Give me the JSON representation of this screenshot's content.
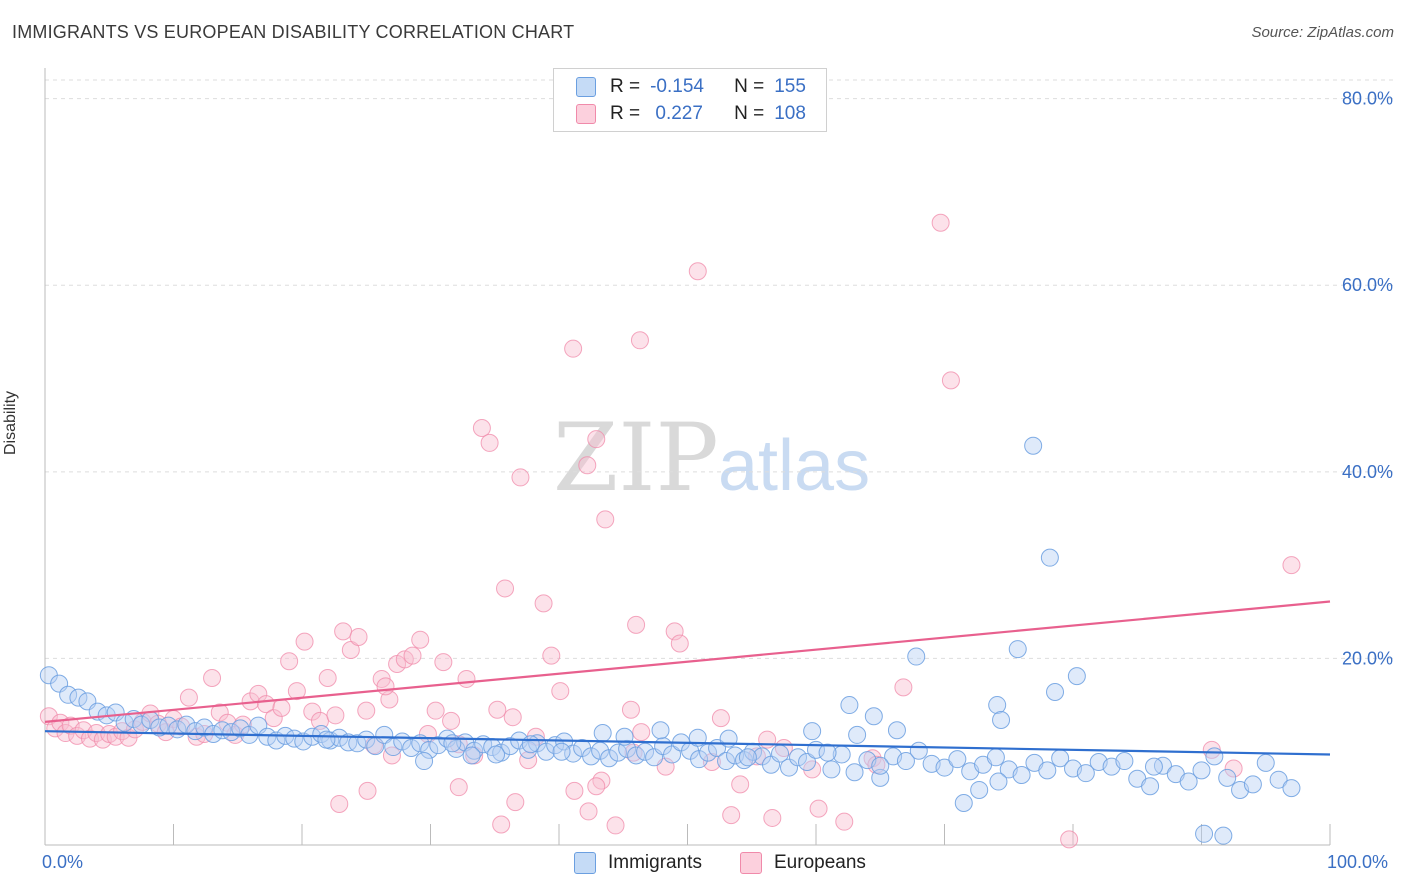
{
  "title": "IMMIGRANTS VS EUROPEAN DISABILITY CORRELATION CHART",
  "source": "Source: ZipAtlas.com",
  "watermark": {
    "zip": "ZIP",
    "atlas": "atlas"
  },
  "legend": {
    "r_label": "R =",
    "n_label": "N =",
    "rows": [
      {
        "r": "-0.154",
        "n": "155",
        "color": "#6b9fe0"
      },
      {
        "r": " 0.227",
        "n": "108",
        "color": "#f08aaa"
      }
    ]
  },
  "bottom_legend": [
    "Immigrants",
    "Europeans"
  ],
  "x_tick_labels": {
    "left": "0.0%",
    "right": "100.0%"
  },
  "chart_data": {
    "type": "scatter",
    "title": "IMMIGRANTS VS EUROPEAN DISABILITY CORRELATION CHART",
    "xlabel": "",
    "ylabel": "Disability",
    "xlim": [
      0,
      100
    ],
    "ylim": [
      0,
      82
    ],
    "y_ticks": [
      {
        "value": 20,
        "label": "20.0%"
      },
      {
        "value": 40,
        "label": "40.0%"
      },
      {
        "value": 60,
        "label": "60.0%"
      },
      {
        "value": 80,
        "label": "80.0%"
      }
    ],
    "grid": "horizontal dashed",
    "legend_placement": "bottom-center",
    "colors": {
      "immigrants": "#6b9fe0",
      "europeans": "#f08aaa",
      "immigrants_line": "#2f6fcf",
      "europeans_line": "#e8608e",
      "tick_label": "#3a6fc4"
    },
    "series": [
      {
        "name": "Immigrants",
        "trend": {
          "x": [
            0,
            100
          ],
          "y": [
            12.2,
            9.7
          ]
        },
        "points": [
          [
            0.3,
            18.2
          ],
          [
            1.1,
            17.3
          ],
          [
            1.8,
            16.1
          ],
          [
            2.6,
            15.8
          ],
          [
            3.3,
            15.4
          ],
          [
            4.1,
            14.3
          ],
          [
            4.8,
            13.9
          ],
          [
            5.5,
            14.2
          ],
          [
            6.2,
            13.1
          ],
          [
            6.9,
            13.5
          ],
          [
            7.5,
            12.9
          ],
          [
            8.2,
            13.4
          ],
          [
            8.9,
            12.6
          ],
          [
            9.6,
            12.8
          ],
          [
            10.3,
            12.4
          ],
          [
            11.0,
            12.9
          ],
          [
            11.7,
            12.2
          ],
          [
            12.4,
            12.6
          ],
          [
            13.1,
            11.9
          ],
          [
            13.8,
            12.3
          ],
          [
            14.5,
            12.1
          ],
          [
            15.2,
            12.5
          ],
          [
            15.9,
            11.8
          ],
          [
            16.6,
            12.8
          ],
          [
            17.3,
            11.6
          ],
          [
            18.0,
            11.2
          ],
          [
            18.7,
            11.7
          ],
          [
            19.4,
            11.4
          ],
          [
            20.1,
            11.1
          ],
          [
            20.8,
            11.6
          ],
          [
            21.5,
            11.9
          ],
          [
            22.2,
            11.2
          ],
          [
            22.9,
            11.5
          ],
          [
            23.6,
            11.0
          ],
          [
            24.3,
            10.9
          ],
          [
            25.0,
            11.3
          ],
          [
            25.7,
            10.6
          ],
          [
            26.4,
            11.8
          ],
          [
            27.1,
            10.5
          ],
          [
            27.8,
            11.1
          ],
          [
            28.5,
            10.4
          ],
          [
            29.2,
            10.9
          ],
          [
            29.9,
            10.2
          ],
          [
            30.6,
            10.7
          ],
          [
            31.3,
            11.4
          ],
          [
            32.0,
            10.3
          ],
          [
            32.7,
            11.0
          ],
          [
            33.4,
            10.1
          ],
          [
            34.1,
            10.8
          ],
          [
            34.8,
            10.5
          ],
          [
            35.5,
            9.9
          ],
          [
            36.2,
            10.6
          ],
          [
            36.9,
            11.2
          ],
          [
            37.6,
            10.2
          ],
          [
            38.3,
            10.9
          ],
          [
            39.0,
            10.0
          ],
          [
            39.7,
            10.7
          ],
          [
            40.4,
            11.1
          ],
          [
            41.1,
            9.8
          ],
          [
            41.8,
            10.4
          ],
          [
            42.5,
            9.5
          ],
          [
            43.2,
            10.1
          ],
          [
            43.9,
            9.3
          ],
          [
            44.6,
            9.9
          ],
          [
            45.3,
            10.3
          ],
          [
            46.0,
            9.6
          ],
          [
            46.7,
            10.0
          ],
          [
            47.4,
            9.4
          ],
          [
            48.1,
            10.6
          ],
          [
            48.8,
            9.7
          ],
          [
            49.5,
            11.0
          ],
          [
            50.2,
            10.1
          ],
          [
            50.9,
            9.2
          ],
          [
            51.6,
            9.9
          ],
          [
            52.3,
            10.4
          ],
          [
            53.0,
            9.0
          ],
          [
            53.7,
            9.6
          ],
          [
            54.4,
            9.1
          ],
          [
            55.1,
            10.0
          ],
          [
            55.8,
            9.5
          ],
          [
            56.5,
            8.6
          ],
          [
            57.2,
            9.8
          ],
          [
            57.9,
            8.3
          ],
          [
            58.6,
            9.4
          ],
          [
            59.3,
            8.9
          ],
          [
            60.0,
            10.2
          ],
          [
            61.2,
            8.1
          ],
          [
            62.0,
            9.7
          ],
          [
            63.0,
            7.8
          ],
          [
            64.0,
            9.1
          ],
          [
            65.0,
            7.2
          ],
          [
            66.0,
            9.5
          ],
          [
            67.0,
            9.0
          ],
          [
            68.0,
            10.1
          ],
          [
            69.0,
            8.7
          ],
          [
            70.0,
            8.3
          ],
          [
            71.0,
            9.2
          ],
          [
            72.0,
            7.9
          ],
          [
            73.0,
            8.6
          ],
          [
            74.0,
            9.4
          ],
          [
            75.0,
            8.1
          ],
          [
            76.0,
            7.5
          ],
          [
            77.0,
            8.8
          ],
          [
            78.0,
            8.0
          ],
          [
            79.0,
            9.3
          ],
          [
            80.0,
            8.2
          ],
          [
            81.0,
            7.7
          ],
          [
            82.0,
            8.9
          ],
          [
            83.0,
            8.4
          ],
          [
            84.0,
            9.0
          ],
          [
            85.0,
            7.1
          ],
          [
            86.0,
            6.3
          ],
          [
            87.0,
            8.5
          ],
          [
            88.0,
            7.6
          ],
          [
            89.0,
            6.8
          ],
          [
            90.0,
            8.0
          ],
          [
            91.0,
            9.5
          ],
          [
            92.0,
            7.2
          ],
          [
            93.0,
            5.9
          ],
          [
            94.0,
            6.5
          ],
          [
            95.0,
            8.8
          ],
          [
            96.0,
            7.0
          ],
          [
            97.0,
            6.1
          ],
          [
            71.5,
            4.5
          ],
          [
            72.7,
            5.9
          ],
          [
            74.2,
            6.8
          ],
          [
            86.3,
            8.4
          ],
          [
            90.2,
            1.2
          ],
          [
            91.7,
            1.0
          ],
          [
            76.9,
            42.8
          ],
          [
            78.2,
            30.8
          ],
          [
            75.7,
            21.0
          ],
          [
            67.8,
            20.2
          ],
          [
            80.3,
            18.1
          ],
          [
            78.6,
            16.4
          ],
          [
            74.1,
            15.0
          ],
          [
            74.4,
            13.4
          ],
          [
            62.6,
            15.0
          ],
          [
            64.5,
            13.8
          ],
          [
            59.7,
            12.2
          ],
          [
            53.2,
            11.4
          ],
          [
            54.7,
            9.4
          ],
          [
            60.9,
            9.9
          ],
          [
            63.2,
            11.8
          ],
          [
            65.0,
            8.5
          ],
          [
            66.3,
            12.3
          ],
          [
            50.8,
            11.5
          ],
          [
            47.9,
            12.3
          ],
          [
            45.1,
            11.6
          ],
          [
            43.4,
            12.0
          ],
          [
            40.2,
            10.0
          ],
          [
            37.8,
            10.8
          ],
          [
            35.1,
            9.7
          ],
          [
            33.2,
            9.6
          ],
          [
            31.7,
            10.9
          ],
          [
            29.5,
            9.0
          ],
          [
            21.9,
            11.3
          ]
        ]
      },
      {
        "name": "Europeans",
        "trend": {
          "x": [
            0,
            100
          ],
          "y": [
            13.2,
            26.1
          ]
        },
        "points": [
          [
            0.3,
            13.8
          ],
          [
            0.8,
            12.5
          ],
          [
            1.2,
            13.1
          ],
          [
            1.6,
            12.0
          ],
          [
            2.0,
            12.8
          ],
          [
            2.5,
            11.7
          ],
          [
            3.0,
            12.3
          ],
          [
            3.5,
            11.4
          ],
          [
            4.0,
            12.0
          ],
          [
            4.5,
            11.3
          ],
          [
            5.0,
            11.9
          ],
          [
            5.5,
            11.6
          ],
          [
            6.0,
            12.2
          ],
          [
            6.5,
            11.5
          ],
          [
            7.0,
            12.4
          ],
          [
            7.6,
            13.2
          ],
          [
            8.2,
            14.1
          ],
          [
            8.8,
            13.0
          ],
          [
            9.4,
            12.1
          ],
          [
            10.0,
            13.5
          ],
          [
            10.6,
            12.7
          ],
          [
            11.2,
            15.8
          ],
          [
            11.8,
            11.6
          ],
          [
            12.4,
            11.9
          ],
          [
            13.0,
            17.9
          ],
          [
            13.6,
            14.2
          ],
          [
            14.2,
            13.1
          ],
          [
            14.8,
            11.8
          ],
          [
            15.4,
            12.9
          ],
          [
            16.0,
            15.4
          ],
          [
            16.6,
            16.2
          ],
          [
            17.2,
            15.1
          ],
          [
            17.8,
            13.6
          ],
          [
            18.4,
            14.7
          ],
          [
            19.0,
            19.7
          ],
          [
            19.6,
            16.5
          ],
          [
            20.2,
            21.8
          ],
          [
            20.8,
            14.3
          ],
          [
            21.4,
            13.3
          ],
          [
            22.0,
            17.9
          ],
          [
            22.6,
            13.9
          ],
          [
            23.2,
            22.9
          ],
          [
            23.8,
            20.9
          ],
          [
            24.4,
            22.3
          ],
          [
            25.0,
            14.4
          ],
          [
            25.6,
            10.7
          ],
          [
            26.2,
            17.8
          ],
          [
            26.8,
            15.6
          ],
          [
            27.4,
            19.4
          ],
          [
            28.0,
            19.9
          ],
          [
            28.6,
            20.3
          ],
          [
            29.2,
            22.0
          ],
          [
            29.8,
            11.9
          ],
          [
            30.4,
            14.4
          ],
          [
            31.0,
            19.6
          ],
          [
            31.6,
            13.3
          ],
          [
            32.2,
            10.8
          ],
          [
            32.8,
            17.8
          ],
          [
            33.4,
            9.6
          ],
          [
            34.0,
            44.7
          ],
          [
            34.6,
            43.1
          ],
          [
            35.2,
            14.5
          ],
          [
            35.8,
            27.5
          ],
          [
            36.4,
            13.7
          ],
          [
            37.0,
            39.4
          ],
          [
            37.6,
            9.1
          ],
          [
            38.2,
            11.6
          ],
          [
            38.8,
            25.9
          ],
          [
            39.4,
            20.3
          ],
          [
            40.1,
            16.5
          ],
          [
            41.1,
            53.2
          ],
          [
            42.2,
            40.7
          ],
          [
            42.9,
            43.5
          ],
          [
            43.6,
            34.9
          ],
          [
            45.6,
            14.5
          ],
          [
            46.0,
            23.6
          ],
          [
            46.3,
            54.1
          ],
          [
            48.3,
            8.4
          ],
          [
            49.0,
            22.9
          ],
          [
            49.4,
            21.6
          ],
          [
            50.8,
            61.5
          ],
          [
            51.9,
            8.9
          ],
          [
            52.6,
            13.6
          ],
          [
            53.4,
            3.2
          ],
          [
            55.4,
            9.5
          ],
          [
            56.6,
            2.9
          ],
          [
            57.5,
            10.4
          ],
          [
            59.7,
            8.1
          ],
          [
            60.2,
            3.9
          ],
          [
            62.2,
            2.5
          ],
          [
            69.7,
            66.7
          ],
          [
            70.5,
            49.8
          ],
          [
            66.8,
            16.9
          ],
          [
            64.4,
            9.3
          ],
          [
            64.7,
            8.6
          ],
          [
            56.2,
            11.3
          ],
          [
            54.1,
            6.5
          ],
          [
            46.4,
            12.1
          ],
          [
            44.4,
            2.1
          ],
          [
            43.3,
            6.9
          ],
          [
            27.0,
            9.6
          ],
          [
            26.5,
            17.0
          ],
          [
            25.1,
            5.8
          ],
          [
            22.9,
            4.4
          ],
          [
            32.2,
            6.2
          ],
          [
            35.5,
            2.2
          ],
          [
            36.6,
            4.6
          ],
          [
            41.2,
            5.8
          ],
          [
            42.3,
            3.6
          ],
          [
            42.9,
            6.3
          ],
          [
            45.8,
            9.9
          ],
          [
            79.7,
            0.6
          ],
          [
            90.8,
            10.2
          ],
          [
            92.5,
            8.2
          ],
          [
            97.0,
            30.0
          ]
        ]
      }
    ]
  }
}
